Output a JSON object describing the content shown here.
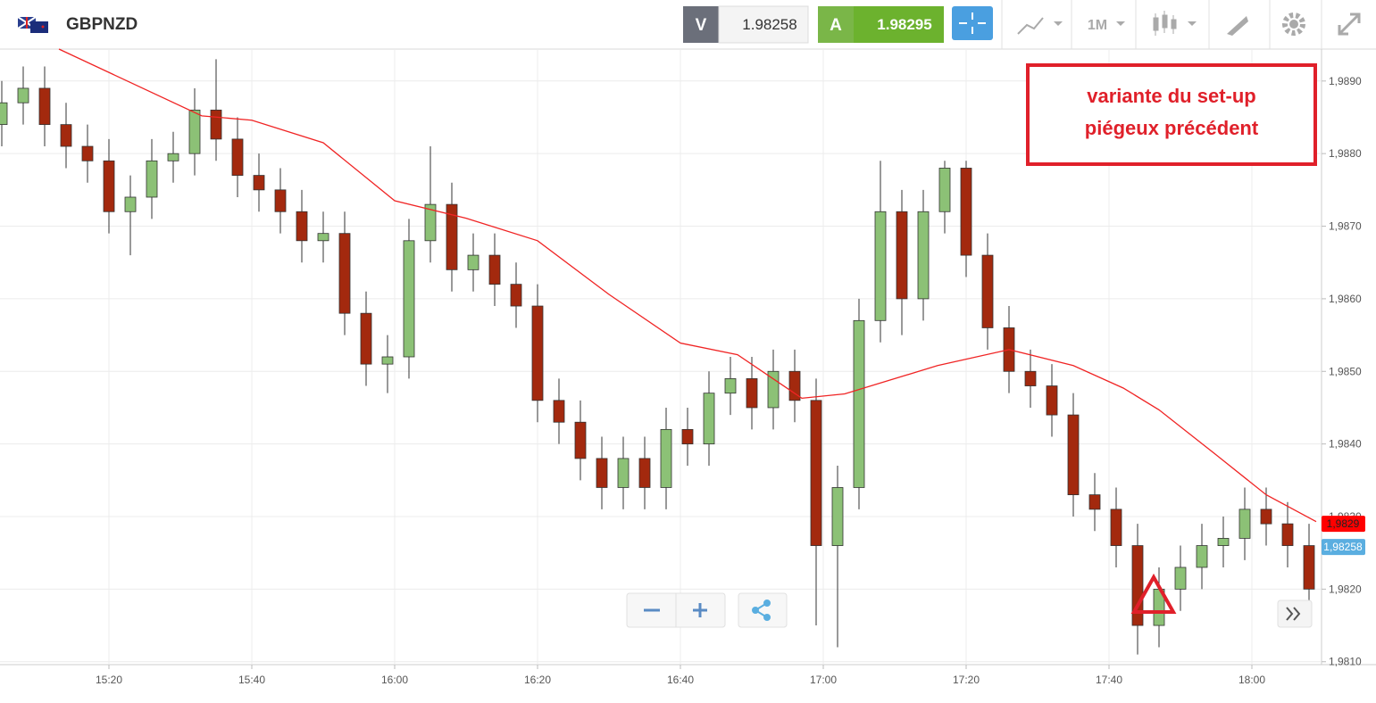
{
  "header": {
    "symbol": "GBPNZD",
    "sell_label": "V",
    "sell_price": "1.98258",
    "buy_label": "A",
    "buy_price": "1.98295",
    "timeframe": "1M"
  },
  "chart_data": {
    "type": "candlestick",
    "annotation": [
      "variante du set-up",
      "piégeux précédent"
    ],
    "x": [
      "15:05",
      "15:08",
      "15:11",
      "15:14",
      "15:17",
      "15:20",
      "15:23",
      "15:26",
      "15:29",
      "15:32",
      "15:35",
      "15:38",
      "15:41",
      "15:44",
      "15:47",
      "15:50",
      "15:53",
      "15:56",
      "15:59",
      "16:02",
      "16:05",
      "16:08",
      "16:11",
      "16:14",
      "16:17",
      "16:20",
      "16:23",
      "16:26",
      "16:29",
      "16:32",
      "16:35",
      "16:38",
      "16:41",
      "16:44",
      "16:47",
      "16:50",
      "16:53",
      "16:56",
      "16:59",
      "17:02",
      "17:05",
      "17:08",
      "17:11",
      "17:14",
      "17:17",
      "17:20",
      "17:23",
      "17:26",
      "17:29",
      "17:32",
      "17:35",
      "17:38",
      "17:41",
      "17:44",
      "17:47",
      "17:50",
      "17:53",
      "17:56",
      "17:59",
      "18:02",
      "18:05",
      "18:08"
    ],
    "open": [
      1.9884,
      1.9887,
      1.9889,
      1.9884,
      1.9881,
      1.9879,
      1.9872,
      1.9874,
      1.9879,
      1.988,
      1.9886,
      1.9882,
      1.9877,
      1.9875,
      1.9872,
      1.9868,
      1.9869,
      1.9858,
      1.9851,
      1.9852,
      1.9868,
      1.9873,
      1.9864,
      1.9866,
      1.9862,
      1.9859,
      1.9846,
      1.9843,
      1.9838,
      1.9834,
      1.9838,
      1.9834,
      1.9842,
      1.984,
      1.9847,
      1.9849,
      1.9845,
      1.985,
      1.9846,
      1.9826,
      1.9834,
      1.9857,
      1.9872,
      1.986,
      1.9872,
      1.9878,
      1.9866,
      1.9856,
      1.985,
      1.9848,
      1.9844,
      1.9833,
      1.9831,
      1.9826,
      1.9815,
      1.982,
      1.9823,
      1.9826,
      1.9827,
      1.9831,
      1.9829,
      1.9826
    ],
    "high": [
      1.989,
      1.9892,
      1.9892,
      1.9887,
      1.9884,
      1.9882,
      1.9877,
      1.9882,
      1.9883,
      1.9889,
      1.9893,
      1.9885,
      1.988,
      1.9878,
      1.9875,
      1.9872,
      1.9872,
      1.9861,
      1.9855,
      1.9871,
      1.9881,
      1.9876,
      1.9869,
      1.9869,
      1.9865,
      1.9862,
      1.9849,
      1.9846,
      1.9841,
      1.9841,
      1.9841,
      1.9845,
      1.9845,
      1.985,
      1.9852,
      1.9852,
      1.9853,
      1.9853,
      1.9849,
      1.9837,
      1.986,
      1.9879,
      1.9875,
      1.9875,
      1.9879,
      1.9879,
      1.9869,
      1.9859,
      1.9853,
      1.9851,
      1.9847,
      1.9836,
      1.9834,
      1.9829,
      1.9823,
      1.9826,
      1.9829,
      1.983,
      1.9834,
      1.9834,
      1.9832,
      1.9829
    ],
    "low": [
      1.9881,
      1.9884,
      1.9881,
      1.9878,
      1.9876,
      1.9869,
      1.9866,
      1.9871,
      1.9876,
      1.9877,
      1.9879,
      1.9874,
      1.9872,
      1.9869,
      1.9865,
      1.9865,
      1.9855,
      1.9848,
      1.9847,
      1.9849,
      1.9865,
      1.9861,
      1.9861,
      1.9859,
      1.9856,
      1.9843,
      1.984,
      1.9835,
      1.9831,
      1.9831,
      1.9831,
      1.9831,
      1.9837,
      1.9837,
      1.9844,
      1.9842,
      1.9842,
      1.9843,
      1.9815,
      1.9812,
      1.9831,
      1.9854,
      1.9855,
      1.9857,
      1.9869,
      1.9863,
      1.9853,
      1.9847,
      1.9845,
      1.9841,
      1.983,
      1.9828,
      1.9823,
      1.9811,
      1.9812,
      1.9817,
      1.982,
      1.9823,
      1.9824,
      1.9826,
      1.9823,
      1.9817
    ],
    "close": [
      1.9887,
      1.9889,
      1.9884,
      1.9881,
      1.9879,
      1.9872,
      1.9874,
      1.9879,
      1.988,
      1.9886,
      1.9882,
      1.9877,
      1.9875,
      1.9872,
      1.9868,
      1.9869,
      1.9858,
      1.9851,
      1.9852,
      1.9868,
      1.9873,
      1.9864,
      1.9866,
      1.9862,
      1.9859,
      1.9846,
      1.9843,
      1.9838,
      1.9834,
      1.9838,
      1.9834,
      1.9842,
      1.984,
      1.9847,
      1.9849,
      1.9845,
      1.985,
      1.9846,
      1.9826,
      1.9834,
      1.9857,
      1.9872,
      1.986,
      1.9872,
      1.9878,
      1.9866,
      1.9856,
      1.985,
      1.9848,
      1.9844,
      1.9833,
      1.9831,
      1.9826,
      1.9815,
      1.982,
      1.9823,
      1.9826,
      1.9827,
      1.9831,
      1.9829,
      1.9826,
      1.982
    ],
    "up_color": "#8cc176",
    "down_color": "#a3290e",
    "moving_average": {
      "color": "#f02424",
      "x": [
        "15:13",
        "15:33",
        "15:40",
        "15:50",
        "16:00",
        "16:10",
        "16:20",
        "16:30",
        "16:40",
        "16:48",
        "16:57",
        "17:03",
        "17:16",
        "17:26",
        "17:35",
        "17:42",
        "17:47",
        "17:55",
        "18:02",
        "18:09"
      ],
      "values": [
        1.98944,
        1.98852,
        1.98846,
        1.98815,
        1.98735,
        1.98711,
        1.9868,
        1.98606,
        1.98539,
        1.98523,
        1.98463,
        1.98469,
        1.98508,
        1.9853,
        1.98508,
        1.98477,
        1.98447,
        1.98385,
        1.9833,
        1.98293
      ]
    },
    "price_markers": [
      {
        "value": 1.9829,
        "label": "1,9829",
        "color": "#ff0000"
      },
      {
        "value": 1.98258,
        "label": "1,98258",
        "color": "#5aaee0"
      }
    ],
    "xticks": [
      "15:20",
      "15:40",
      "16:00",
      "16:20",
      "16:40",
      "17:00",
      "17:20",
      "17:40",
      "18:00"
    ],
    "ylim": [
      1.98096,
      1.98944
    ],
    "yticks": [
      {
        "value": 1.981,
        "label": "1,9810"
      },
      {
        "value": 1.982,
        "label": "1,9820"
      },
      {
        "value": 1.983,
        "label": "1,9830"
      },
      {
        "value": 1.984,
        "label": "1,9840"
      },
      {
        "value": 1.985,
        "label": "1,9850"
      },
      {
        "value": 1.986,
        "label": "1,9860"
      },
      {
        "value": 1.987,
        "label": "1,9870"
      },
      {
        "value": 1.988,
        "label": "1,9880"
      },
      {
        "value": 1.989,
        "label": "1,9890"
      }
    ],
    "grid": true
  }
}
